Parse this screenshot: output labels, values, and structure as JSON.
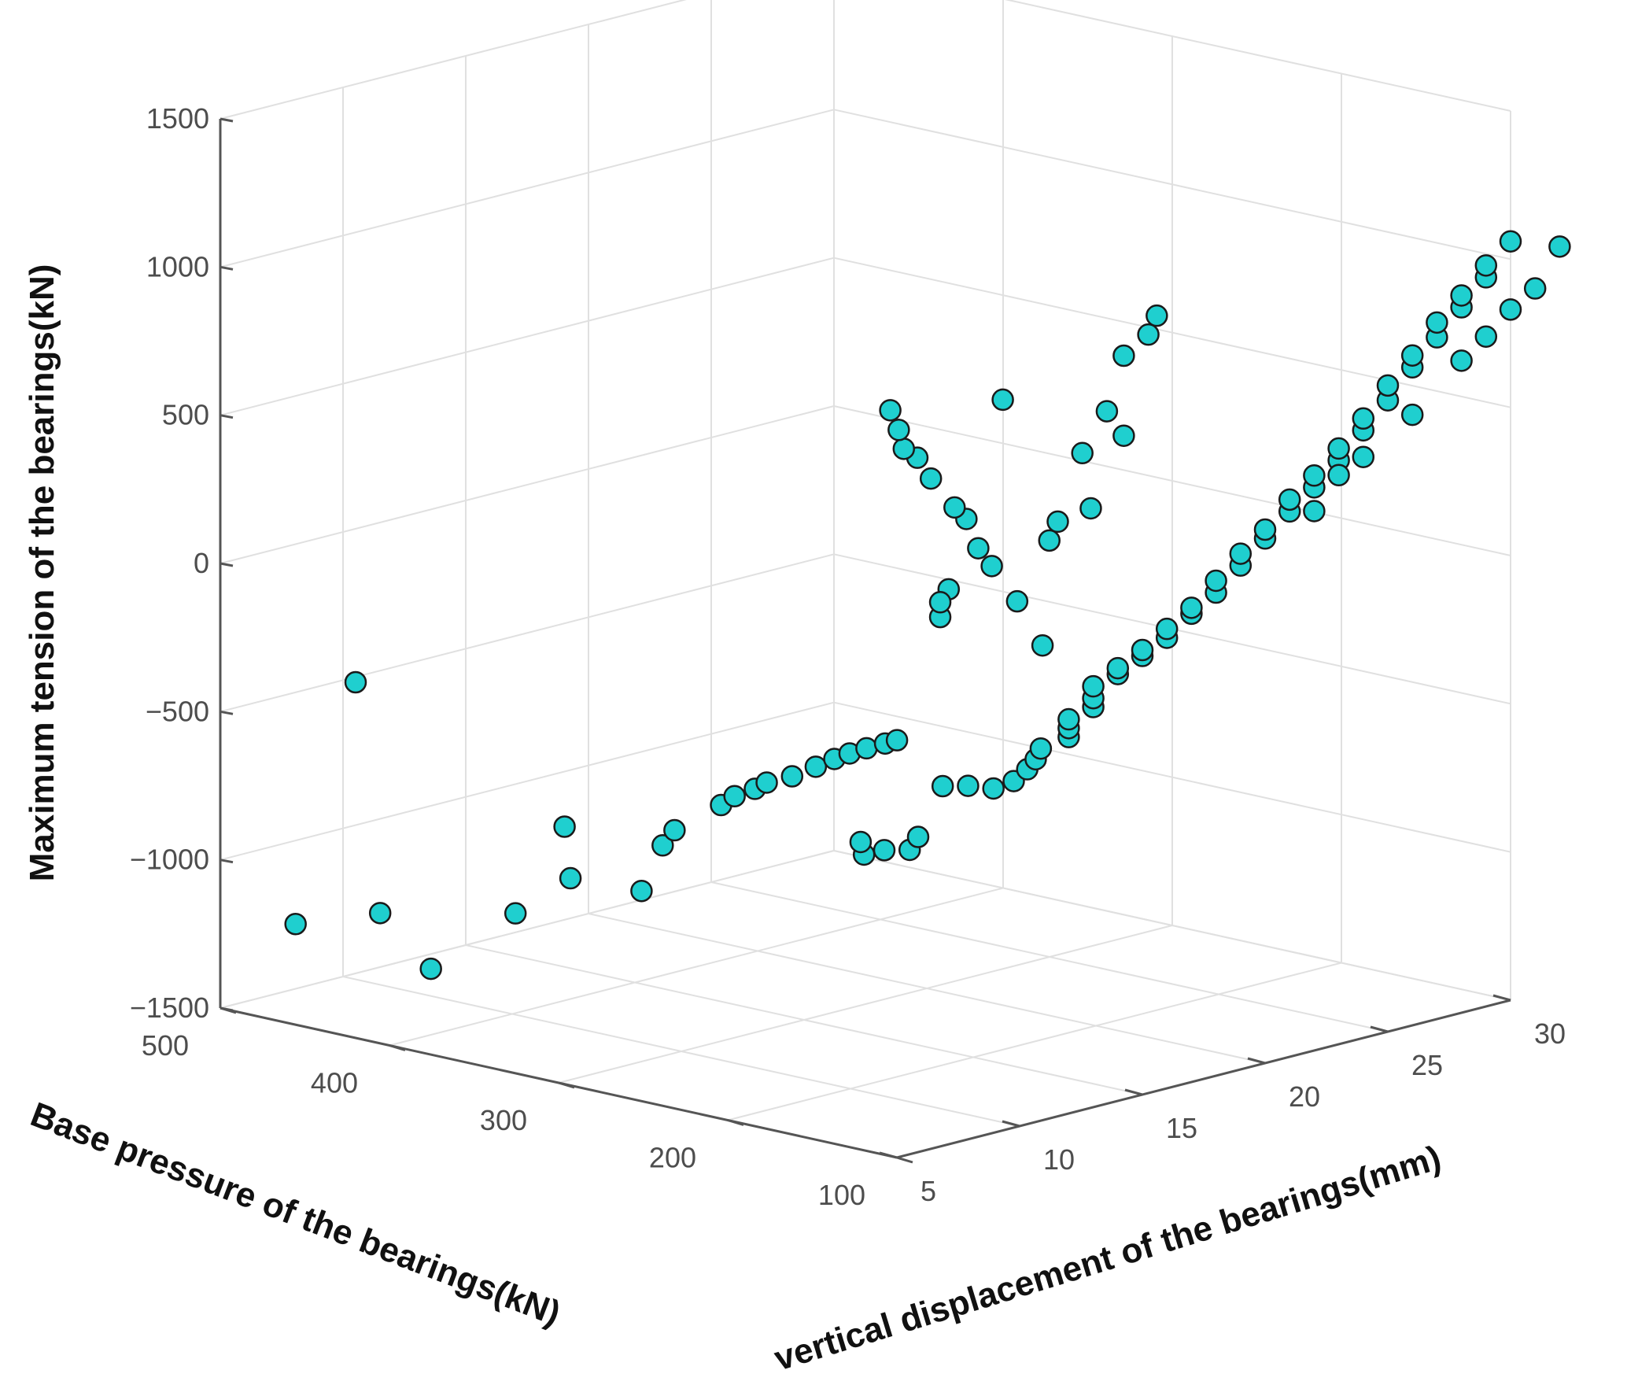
{
  "chart_data": {
    "type": "scatter",
    "title": "",
    "xlabel": "Base pressure of the bearings(kN)",
    "ylabel": "vertical displacement of the bearings(mm)",
    "zlabel": "Maximum tension of the bearings(kN)",
    "xlim": [
      100,
      500
    ],
    "ylim": [
      5,
      30
    ],
    "zlim": [
      -1500,
      1500
    ],
    "x_ticks": [
      "100",
      "200",
      "300",
      "400",
      "500"
    ],
    "y_ticks": [
      "5",
      "10",
      "15",
      "20",
      "25",
      "30"
    ],
    "z_ticks": [
      "−1500",
      "−1000",
      "−500",
      "0",
      "500",
      "1000",
      "1500"
    ],
    "grid": true,
    "marker_face_color": "#1fcfcf",
    "marker_edge_color": "#1a1a1a",
    "points": [
      {
        "x": 470,
        "y": 6,
        "z": -1200
      },
      {
        "x": 420,
        "y": 6,
        "z": -1100
      },
      {
        "x": 390,
        "y": 6,
        "z": -1250
      },
      {
        "x": 340,
        "y": 6,
        "z": -1000
      },
      {
        "x": 322,
        "y": 7,
        "z": -880
      },
      {
        "x": 280,
        "y": 7,
        "z": -870
      },
      {
        "x": 340,
        "y": 8,
        "z": -750
      },
      {
        "x": 282,
        "y": 8,
        "z": -740
      },
      {
        "x": 275,
        "y": 8,
        "z": -680
      },
      {
        "x": 262,
        "y": 9,
        "z": -600
      },
      {
        "x": 254,
        "y": 9,
        "z": -560
      },
      {
        "x": 242,
        "y": 9,
        "z": -520
      },
      {
        "x": 235,
        "y": 9,
        "z": -490
      },
      {
        "x": 220,
        "y": 9,
        "z": -450
      },
      {
        "x": 206,
        "y": 9,
        "z": -400
      },
      {
        "x": 195,
        "y": 9,
        "z": -360
      },
      {
        "x": 186,
        "y": 9,
        "z": -330
      },
      {
        "x": 176,
        "y": 9,
        "z": -300
      },
      {
        "x": 165,
        "y": 9,
        "z": -270
      },
      {
        "x": 158,
        "y": 9,
        "z": -250
      },
      {
        "x": 192,
        "y": 10,
        "z": -700
      },
      {
        "x": 194,
        "y": 10,
        "z": -660
      },
      {
        "x": 180,
        "y": 10,
        "z": -670
      },
      {
        "x": 165,
        "y": 10,
        "z": -650
      },
      {
        "x": 160,
        "y": 10,
        "z": -600
      },
      {
        "x": 420,
        "y": 5,
        "z": -300
      },
      {
        "x": 160,
        "y": 11,
        "z": -450
      },
      {
        "x": 145,
        "y": 11,
        "z": -430
      },
      {
        "x": 130,
        "y": 11,
        "z": -420
      },
      {
        "x": 118,
        "y": 11,
        "z": -380
      },
      {
        "x": 110,
        "y": 11,
        "z": -330
      },
      {
        "x": 105,
        "y": 11,
        "z": -290
      },
      {
        "x": 102,
        "y": 11,
        "z": -250
      },
      {
        "x": 100,
        "y": 12,
        "z": -230
      },
      {
        "x": 100,
        "y": 12,
        "z": -200
      },
      {
        "x": 100,
        "y": 12,
        "z": -170
      },
      {
        "x": 100,
        "y": 13,
        "z": -150
      },
      {
        "x": 100,
        "y": 13,
        "z": -120
      },
      {
        "x": 100,
        "y": 13,
        "z": -80
      },
      {
        "x": 100,
        "y": 14,
        "z": -60
      },
      {
        "x": 100,
        "y": 14,
        "z": -40
      },
      {
        "x": 100,
        "y": 15,
        "z": -20
      },
      {
        "x": 100,
        "y": 15,
        "z": 0
      },
      {
        "x": 100,
        "y": 16,
        "z": 20
      },
      {
        "x": 100,
        "y": 16,
        "z": 50
      },
      {
        "x": 100,
        "y": 17,
        "z": 80
      },
      {
        "x": 100,
        "y": 17,
        "z": 100
      },
      {
        "x": 100,
        "y": 18,
        "z": 130
      },
      {
        "x": 100,
        "y": 18,
        "z": 170
      },
      {
        "x": 100,
        "y": 19,
        "z": 200
      },
      {
        "x": 100,
        "y": 19,
        "z": 240
      },
      {
        "x": 100,
        "y": 20,
        "z": 270
      },
      {
        "x": 100,
        "y": 20,
        "z": 300
      },
      {
        "x": 100,
        "y": 21,
        "z": 340
      },
      {
        "x": 100,
        "y": 21,
        "z": 380
      },
      {
        "x": 100,
        "y": 22,
        "z": 400
      },
      {
        "x": 100,
        "y": 22,
        "z": 440
      },
      {
        "x": 100,
        "y": 23,
        "z": 470
      },
      {
        "x": 100,
        "y": 23,
        "z": 510
      },
      {
        "x": 100,
        "y": 24,
        "z": 550
      },
      {
        "x": 100,
        "y": 24,
        "z": 590
      },
      {
        "x": 100,
        "y": 25,
        "z": 630
      },
      {
        "x": 100,
        "y": 25,
        "z": 680
      },
      {
        "x": 100,
        "y": 26,
        "z": 720
      },
      {
        "x": 100,
        "y": 26,
        "z": 760
      },
      {
        "x": 100,
        "y": 27,
        "z": 800
      },
      {
        "x": 100,
        "y": 27,
        "z": 850
      },
      {
        "x": 100,
        "y": 28,
        "z": 880
      },
      {
        "x": 100,
        "y": 28,
        "z": 920
      },
      {
        "x": 100,
        "y": 29,
        "z": 960
      },
      {
        "x": 100,
        "y": 29,
        "z": 1000
      },
      {
        "x": 100,
        "y": 30,
        "z": 1060
      },
      {
        "x": 100,
        "y": 23,
        "z": 420
      },
      {
        "x": 100,
        "y": 24,
        "z": 460
      },
      {
        "x": 100,
        "y": 22,
        "z": 320
      },
      {
        "x": 100,
        "y": 26,
        "z": 560
      },
      {
        "x": 100,
        "y": 28,
        "z": 700
      },
      {
        "x": 100,
        "y": 29,
        "z": 760
      },
      {
        "x": 100,
        "y": 30,
        "z": 830
      },
      {
        "x": 100,
        "y": 31,
        "z": 880
      },
      {
        "x": 100,
        "y": 32,
        "z": 1000
      },
      {
        "x": 130,
        "y": 13,
        "z": 20
      },
      {
        "x": 145,
        "y": 13,
        "z": 150
      },
      {
        "x": 160,
        "y": 13,
        "z": 250
      },
      {
        "x": 168,
        "y": 13,
        "z": 300
      },
      {
        "x": 175,
        "y": 13,
        "z": 390
      },
      {
        "x": 182,
        "y": 13,
        "z": 420
      },
      {
        "x": 196,
        "y": 13,
        "z": 500
      },
      {
        "x": 204,
        "y": 13,
        "z": 560
      },
      {
        "x": 212,
        "y": 13,
        "z": 580
      },
      {
        "x": 215,
        "y": 13,
        "z": 640
      },
      {
        "x": 220,
        "y": 13,
        "z": 700
      },
      {
        "x": 168,
        "y": 14,
        "z": 780
      },
      {
        "x": 200,
        "y": 14,
        "z": 100
      },
      {
        "x": 205,
        "y": 14,
        "z": 0
      },
      {
        "x": 205,
        "y": 14,
        "z": 50
      },
      {
        "x": 155,
        "y": 15,
        "z": 300
      },
      {
        "x": 150,
        "y": 15,
        "z": 370
      },
      {
        "x": 145,
        "y": 16,
        "z": 400
      },
      {
        "x": 150,
        "y": 17,
        "z": 700
      },
      {
        "x": 140,
        "y": 17,
        "z": 900
      },
      {
        "x": 140,
        "y": 18,
        "z": 950
      },
      {
        "x": 135,
        "y": 18,
        "z": 1020
      },
      {
        "x": 150,
        "y": 16,
        "z": 580
      },
      {
        "x": 140,
        "y": 17,
        "z": 630
      }
    ]
  }
}
